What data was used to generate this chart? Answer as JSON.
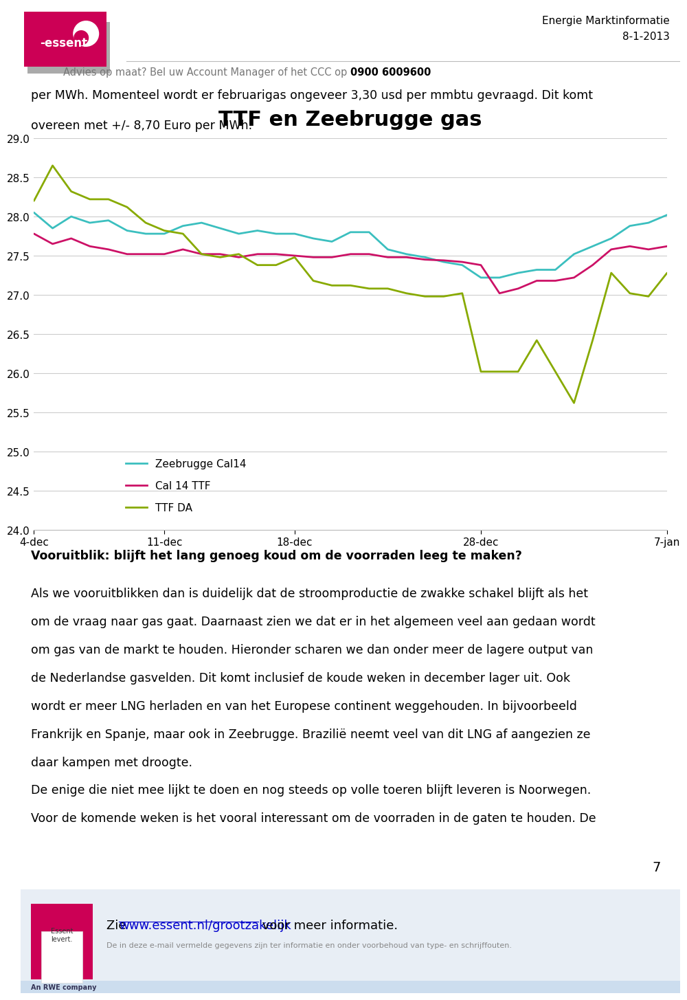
{
  "title": "TTF en Zeebrugge gas",
  "title_fontsize": 22,
  "title_fontweight": "bold",
  "ylim": [
    24.0,
    29.0
  ],
  "yticks": [
    24.0,
    24.5,
    25.0,
    25.5,
    26.0,
    26.5,
    27.0,
    27.5,
    28.0,
    28.5,
    29.0
  ],
  "xtick_labels": [
    "4-dec",
    "11-dec",
    "18-dec",
    "28-dec",
    "7-jan"
  ],
  "xtick_positions": [
    0,
    7,
    14,
    24,
    34
  ],
  "series": {
    "Zeebrugge Cal14": {
      "color": "#3BBFBF",
      "data_x": [
        0,
        1,
        2,
        3,
        4,
        5,
        6,
        7,
        8,
        9,
        10,
        11,
        12,
        13,
        14,
        15,
        16,
        17,
        18,
        19,
        20,
        21,
        22,
        23,
        24,
        25,
        26,
        27,
        28,
        29,
        30,
        31,
        32,
        33,
        34
      ],
      "data_y": [
        28.05,
        27.85,
        28.0,
        27.92,
        27.95,
        27.82,
        27.78,
        27.78,
        27.88,
        27.92,
        27.85,
        27.78,
        27.82,
        27.78,
        27.78,
        27.72,
        27.68,
        27.8,
        27.8,
        27.58,
        27.52,
        27.48,
        27.42,
        27.38,
        27.22,
        27.22,
        27.28,
        27.32,
        27.32,
        27.52,
        27.62,
        27.72,
        27.88,
        27.92,
        28.02
      ]
    },
    "Cal 14 TTF": {
      "color": "#CC1166",
      "data_x": [
        0,
        1,
        2,
        3,
        4,
        5,
        6,
        7,
        8,
        9,
        10,
        11,
        12,
        13,
        14,
        15,
        16,
        17,
        18,
        19,
        20,
        21,
        22,
        23,
        24,
        25,
        26,
        27,
        28,
        29,
        30,
        31,
        32,
        33,
        34
      ],
      "data_y": [
        27.78,
        27.65,
        27.72,
        27.62,
        27.58,
        27.52,
        27.52,
        27.52,
        27.58,
        27.52,
        27.52,
        27.48,
        27.52,
        27.52,
        27.5,
        27.48,
        27.48,
        27.52,
        27.52,
        27.48,
        27.48,
        27.45,
        27.44,
        27.42,
        27.38,
        27.02,
        27.08,
        27.18,
        27.18,
        27.22,
        27.38,
        27.58,
        27.62,
        27.58,
        27.62
      ]
    },
    "TTF DA": {
      "color": "#88AA00",
      "data_x": [
        0,
        1,
        2,
        3,
        4,
        5,
        6,
        7,
        8,
        9,
        10,
        11,
        12,
        13,
        14,
        15,
        16,
        17,
        18,
        19,
        20,
        21,
        22,
        23,
        24,
        25,
        26,
        27,
        28,
        29,
        30,
        31,
        32,
        33,
        34
      ],
      "data_y": [
        28.2,
        28.65,
        28.32,
        28.22,
        28.22,
        28.12,
        27.92,
        27.82,
        27.78,
        27.52,
        27.48,
        27.52,
        27.38,
        27.38,
        27.48,
        27.18,
        27.12,
        27.12,
        27.08,
        27.08,
        27.02,
        26.98,
        26.98,
        27.02,
        26.02,
        26.02,
        26.02,
        26.42,
        26.02,
        25.62,
        26.42,
        27.28,
        27.02,
        26.98,
        27.28
      ]
    }
  },
  "legend_entries": [
    "Zeebrugge Cal14",
    "Cal 14 TTF",
    "TTF DA"
  ],
  "legend_colors": [
    "#3BBFBF",
    "#CC1166",
    "#88AA00"
  ],
  "header_text1": "Energie Marktinformatie",
  "header_text2": "8-1-2013",
  "header_subtext": "Advies op maat? Bel uw Account Manager of het CCC op ",
  "header_phone": "0900 6009600",
  "body_line1": "per MWh. Momenteel wordt er februarigas ongeveer 3,30 usd per mmbtu gevraagd. Dit komt",
  "body_line2": "overeen met +/- 8,70 Euro per MWh.",
  "section_title": "Vooruitblik: blijft het lang genoeg koud om de voorraden leeg te maken?",
  "body_paragraphs": [
    "Als we vooruitblikken dan is duidelijk dat de stroomproductie de zwakke schakel blijft als het",
    "om de vraag naar gas gaat. Daarnaast zien we dat er in het algemeen veel aan gedaan wordt",
    "om gas van de markt te houden. Hieronder scharen we dan onder meer de lagere output van",
    "de Nederlandse gasvelden. Dit komt inclusief de koude weken in december lager uit. Ook",
    "wordt er meer LNG herladen en van het Europese continent weggehouden. In bijvoorbeeld",
    "Frankrijk en Spanje, maar ook in Zeebrugge. Brazilië neemt veel van dit LNG af aangezien ze",
    "daar kampen met droogte.",
    "De enige die niet mee lijkt te doen en nog steeds op volle toeren blijft leveren is Noorwegen.",
    "Voor de komende weken is het vooral interessant om de voorraden in de gaten te houden. De"
  ],
  "footer_main": "Zie ",
  "footer_link": "www.essent.nl/grootzakelijk",
  "footer_main2": " voor meer informatie.",
  "footer_small": "De in deze e-mail vermelde gegevens zijn ter informatie en onder voorbehoud van type- en schrijffouten.",
  "footer_rwe": "An RWE company",
  "page_number": "7",
  "chart_border": "#BBBBBB",
  "grid_color": "#CCCCCC",
  "page_bg": "#FFFFFF",
  "chart_bg": "#FFFFFF",
  "body_fontsize": 12.5,
  "tick_fontsize": 11,
  "header_advies_color": "#777777",
  "footer_bg": "#E8EEF5"
}
